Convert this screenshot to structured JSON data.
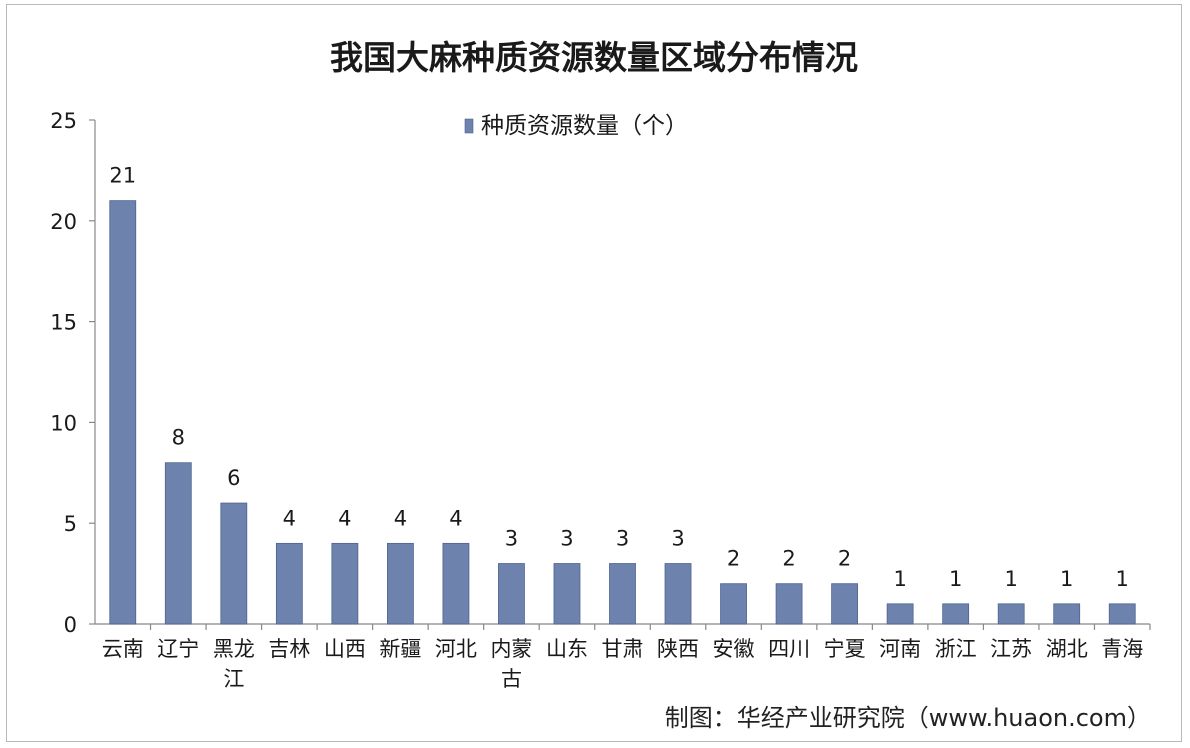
{
  "chart_data": {
    "type": "bar",
    "title": "我国大麻种质资源数量区域分布情况",
    "xlabel": "",
    "ylabel": "",
    "ylim": [
      0,
      25
    ],
    "yticks": [
      "0",
      "5",
      "10",
      "15",
      "20",
      "25"
    ],
    "categories": [
      "云南",
      "辽宁",
      "黑龙江",
      "吉林",
      "山西",
      "新疆",
      "河北",
      "内蒙古",
      "山东",
      "甘肃",
      "陕西",
      "安徽",
      "四川",
      "宁夏",
      "河南",
      "浙江",
      "江苏",
      "湖北",
      "青海"
    ],
    "series": [
      {
        "name": "种质资源数量（个）",
        "values": [
          21,
          8,
          6,
          4,
          4,
          4,
          4,
          3,
          3,
          3,
          3,
          2,
          2,
          2,
          1,
          1,
          1,
          1,
          1
        ]
      }
    ],
    "data_labels": [
      "21",
      "8",
      "6",
      "4",
      "4",
      "4",
      "4",
      "3",
      "3",
      "3",
      "3",
      "2",
      "2",
      "2",
      "1",
      "1",
      "1",
      "1",
      "1"
    ],
    "legend_position": "top",
    "grid": false,
    "colors": {
      "bar": "#6d82ad",
      "bar_edge": "#4e6391",
      "axis": "#888888",
      "text": "#1a1a1a"
    }
  },
  "source": "制图：华经产业研究院（www.huaon.com）",
  "watermark": {
    "text": "华经产业研究院",
    "url": "www.huaon.com"
  }
}
